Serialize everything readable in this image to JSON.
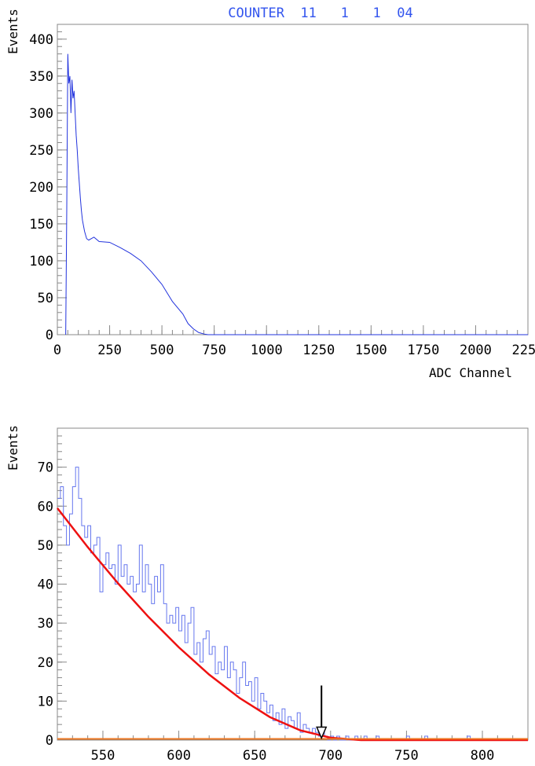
{
  "chart_data": [
    {
      "type": "line",
      "title": "COUNTER  11   1   1  04",
      "xlabel": "ADC Channel",
      "ylabel": "Events",
      "xlim": [
        0,
        2250
      ],
      "ylim": [
        0,
        420
      ],
      "x_ticks": [
        0,
        250,
        500,
        750,
        1000,
        1250,
        1500,
        1750,
        2000,
        2250
      ],
      "y_ticks": [
        0,
        50,
        100,
        150,
        200,
        250,
        300,
        350,
        400
      ],
      "grid": false,
      "colors": {
        "histogram": "#2233dd"
      },
      "series": [
        {
          "points": [
            [
              40,
              0
            ],
            [
              45,
              170
            ],
            [
              50,
              380
            ],
            [
              55,
              340
            ],
            [
              60,
              350
            ],
            [
              65,
              300
            ],
            [
              70,
              345
            ],
            [
              75,
              320
            ],
            [
              80,
              330
            ],
            [
              85,
              300
            ],
            [
              90,
              270
            ],
            [
              95,
              250
            ],
            [
              100,
              225
            ],
            [
              105,
              205
            ],
            [
              110,
              185
            ],
            [
              115,
              168
            ],
            [
              120,
              155
            ],
            [
              130,
              140
            ],
            [
              140,
              130
            ],
            [
              150,
              128
            ],
            [
              175,
              132
            ],
            [
              200,
              126
            ],
            [
              250,
              125
            ],
            [
              300,
              118
            ],
            [
              350,
              110
            ],
            [
              400,
              100
            ],
            [
              450,
              85
            ],
            [
              500,
              68
            ],
            [
              550,
              45
            ],
            [
              600,
              28
            ],
            [
              625,
              15
            ],
            [
              650,
              8
            ],
            [
              675,
              3
            ],
            [
              700,
              1
            ],
            [
              720,
              0
            ],
            [
              2250,
              0
            ]
          ]
        }
      ]
    },
    {
      "type": "line",
      "title": "",
      "xlabel": "",
      "ylabel": "Events",
      "xlim": [
        520,
        830
      ],
      "ylim": [
        0,
        80
      ],
      "x_ticks": [
        550,
        600,
        650,
        700,
        750,
        800
      ],
      "y_ticks": [
        0,
        10,
        20,
        30,
        40,
        50,
        60,
        70
      ],
      "grid": false,
      "colors": {
        "histogram": "#6677ee",
        "fit": "#ee1111",
        "background": "#ee7722",
        "marker": "#000000"
      },
      "series": [
        {
          "name": "histogram",
          "points": [
            [
              520,
              62
            ],
            [
              522,
              65
            ],
            [
              524,
              55
            ],
            [
              526,
              50
            ],
            [
              528,
              58
            ],
            [
              530,
              65
            ],
            [
              532,
              70
            ],
            [
              534,
              62
            ],
            [
              536,
              55
            ],
            [
              538,
              52
            ],
            [
              540,
              55
            ],
            [
              542,
              48
            ],
            [
              544,
              50
            ],
            [
              546,
              52
            ],
            [
              548,
              38
            ],
            [
              550,
              45
            ],
            [
              552,
              48
            ],
            [
              554,
              44
            ],
            [
              556,
              45
            ],
            [
              558,
              40
            ],
            [
              560,
              50
            ],
            [
              562,
              42
            ],
            [
              564,
              45
            ],
            [
              566,
              40
            ],
            [
              568,
              42
            ],
            [
              570,
              38
            ],
            [
              572,
              40
            ],
            [
              574,
              50
            ],
            [
              576,
              38
            ],
            [
              578,
              45
            ],
            [
              580,
              40
            ],
            [
              582,
              35
            ],
            [
              584,
              42
            ],
            [
              586,
              38
            ],
            [
              588,
              45
            ],
            [
              590,
              35
            ],
            [
              592,
              30
            ],
            [
              594,
              32
            ],
            [
              596,
              30
            ],
            [
              598,
              34
            ],
            [
              600,
              28
            ],
            [
              602,
              32
            ],
            [
              604,
              25
            ],
            [
              606,
              30
            ],
            [
              608,
              34
            ],
            [
              610,
              22
            ],
            [
              612,
              25
            ],
            [
              614,
              20
            ],
            [
              616,
              26
            ],
            [
              618,
              28
            ],
            [
              620,
              22
            ],
            [
              622,
              24
            ],
            [
              624,
              17
            ],
            [
              626,
              20
            ],
            [
              628,
              18
            ],
            [
              630,
              24
            ],
            [
              632,
              16
            ],
            [
              634,
              20
            ],
            [
              636,
              18
            ],
            [
              638,
              12
            ],
            [
              640,
              16
            ],
            [
              642,
              20
            ],
            [
              644,
              14
            ],
            [
              646,
              15
            ],
            [
              648,
              10
            ],
            [
              650,
              16
            ],
            [
              652,
              8
            ],
            [
              654,
              12
            ],
            [
              656,
              10
            ],
            [
              658,
              7
            ],
            [
              660,
              9
            ],
            [
              662,
              5
            ],
            [
              664,
              7
            ],
            [
              666,
              4
            ],
            [
              668,
              8
            ],
            [
              670,
              3
            ],
            [
              672,
              6
            ],
            [
              674,
              5
            ],
            [
              676,
              3
            ],
            [
              678,
              7
            ],
            [
              680,
              2
            ],
            [
              682,
              4
            ],
            [
              684,
              3
            ],
            [
              686,
              2
            ],
            [
              688,
              3
            ],
            [
              690,
              2
            ],
            [
              692,
              1
            ],
            [
              694,
              2
            ],
            [
              696,
              1
            ],
            [
              698,
              0
            ],
            [
              700,
              1
            ],
            [
              702,
              0
            ],
            [
              704,
              1
            ],
            [
              706,
              0
            ],
            [
              710,
              1
            ],
            [
              712,
              0
            ],
            [
              716,
              1
            ],
            [
              718,
              0
            ],
            [
              722,
              1
            ],
            [
              724,
              0
            ],
            [
              730,
              1
            ],
            [
              732,
              0
            ],
            [
              750,
              1
            ],
            [
              752,
              0
            ],
            [
              760,
              0
            ],
            [
              762,
              1
            ],
            [
              764,
              0
            ],
            [
              790,
              1
            ],
            [
              792,
              0
            ],
            [
              830,
              0
            ]
          ]
        },
        {
          "name": "fit",
          "points": [
            [
              520,
              59.5
            ],
            [
              540,
              49.5
            ],
            [
              560,
              40.2
            ],
            [
              580,
              31.6
            ],
            [
              600,
              23.8
            ],
            [
              620,
              16.8
            ],
            [
              640,
              10.8
            ],
            [
              660,
              5.9
            ],
            [
              680,
              2.5
            ],
            [
              700,
              0.6
            ],
            [
              720,
              0
            ],
            [
              830,
              0
            ]
          ]
        },
        {
          "name": "background",
          "points": [
            [
              520,
              0.3
            ],
            [
              830,
              0.3
            ]
          ]
        }
      ],
      "marker_x": 694,
      "marker_y_top": 14,
      "marker_y_tip": 0.5
    }
  ]
}
